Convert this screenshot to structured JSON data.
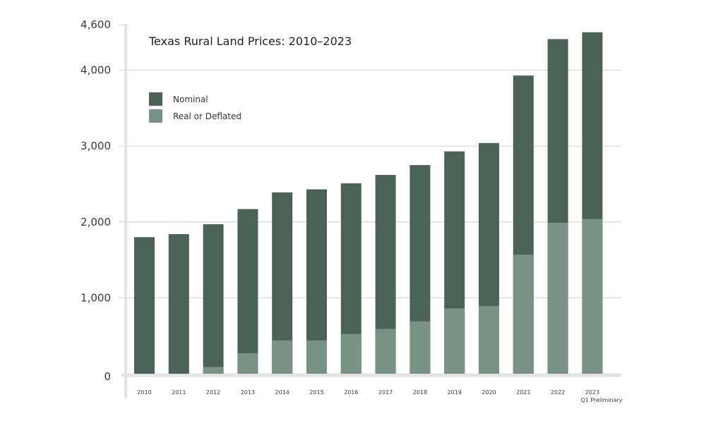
{
  "chart_data": {
    "type": "bar",
    "stacking": "overlay",
    "title": "Texas Rural Land Prices: 2010–2023",
    "xlabel": "",
    "ylabel": "",
    "ylim": [
      0,
      4600
    ],
    "yticks": [
      0,
      1000,
      2000,
      3000,
      4000,
      4600
    ],
    "ytick_labels": [
      "0",
      "1,000",
      "2,000",
      "3,000",
      "4,000",
      "4,600"
    ],
    "grid": true,
    "legend_position": "top-left",
    "categories": [
      "2010",
      "2011",
      "2012",
      "2013",
      "2014",
      "2015",
      "2016",
      "2017",
      "2018",
      "2019",
      "2020",
      "2021",
      "2022",
      "2023"
    ],
    "category_sublabels": {
      "2023": "Q1 Preliminary"
    },
    "series": [
      {
        "name": "Nominal",
        "color": "#4b6356",
        "values": [
          1800,
          1840,
          1970,
          2170,
          2390,
          2430,
          2510,
          2620,
          2750,
          2930,
          3040,
          3930,
          4410,
          4500
        ]
      },
      {
        "name": "Real or Deflated",
        "color": "#789384",
        "values": [
          0,
          0,
          90,
          270,
          440,
          440,
          525,
          590,
          690,
          860,
          895,
          1570,
          1990,
          2040
        ]
      }
    ]
  }
}
